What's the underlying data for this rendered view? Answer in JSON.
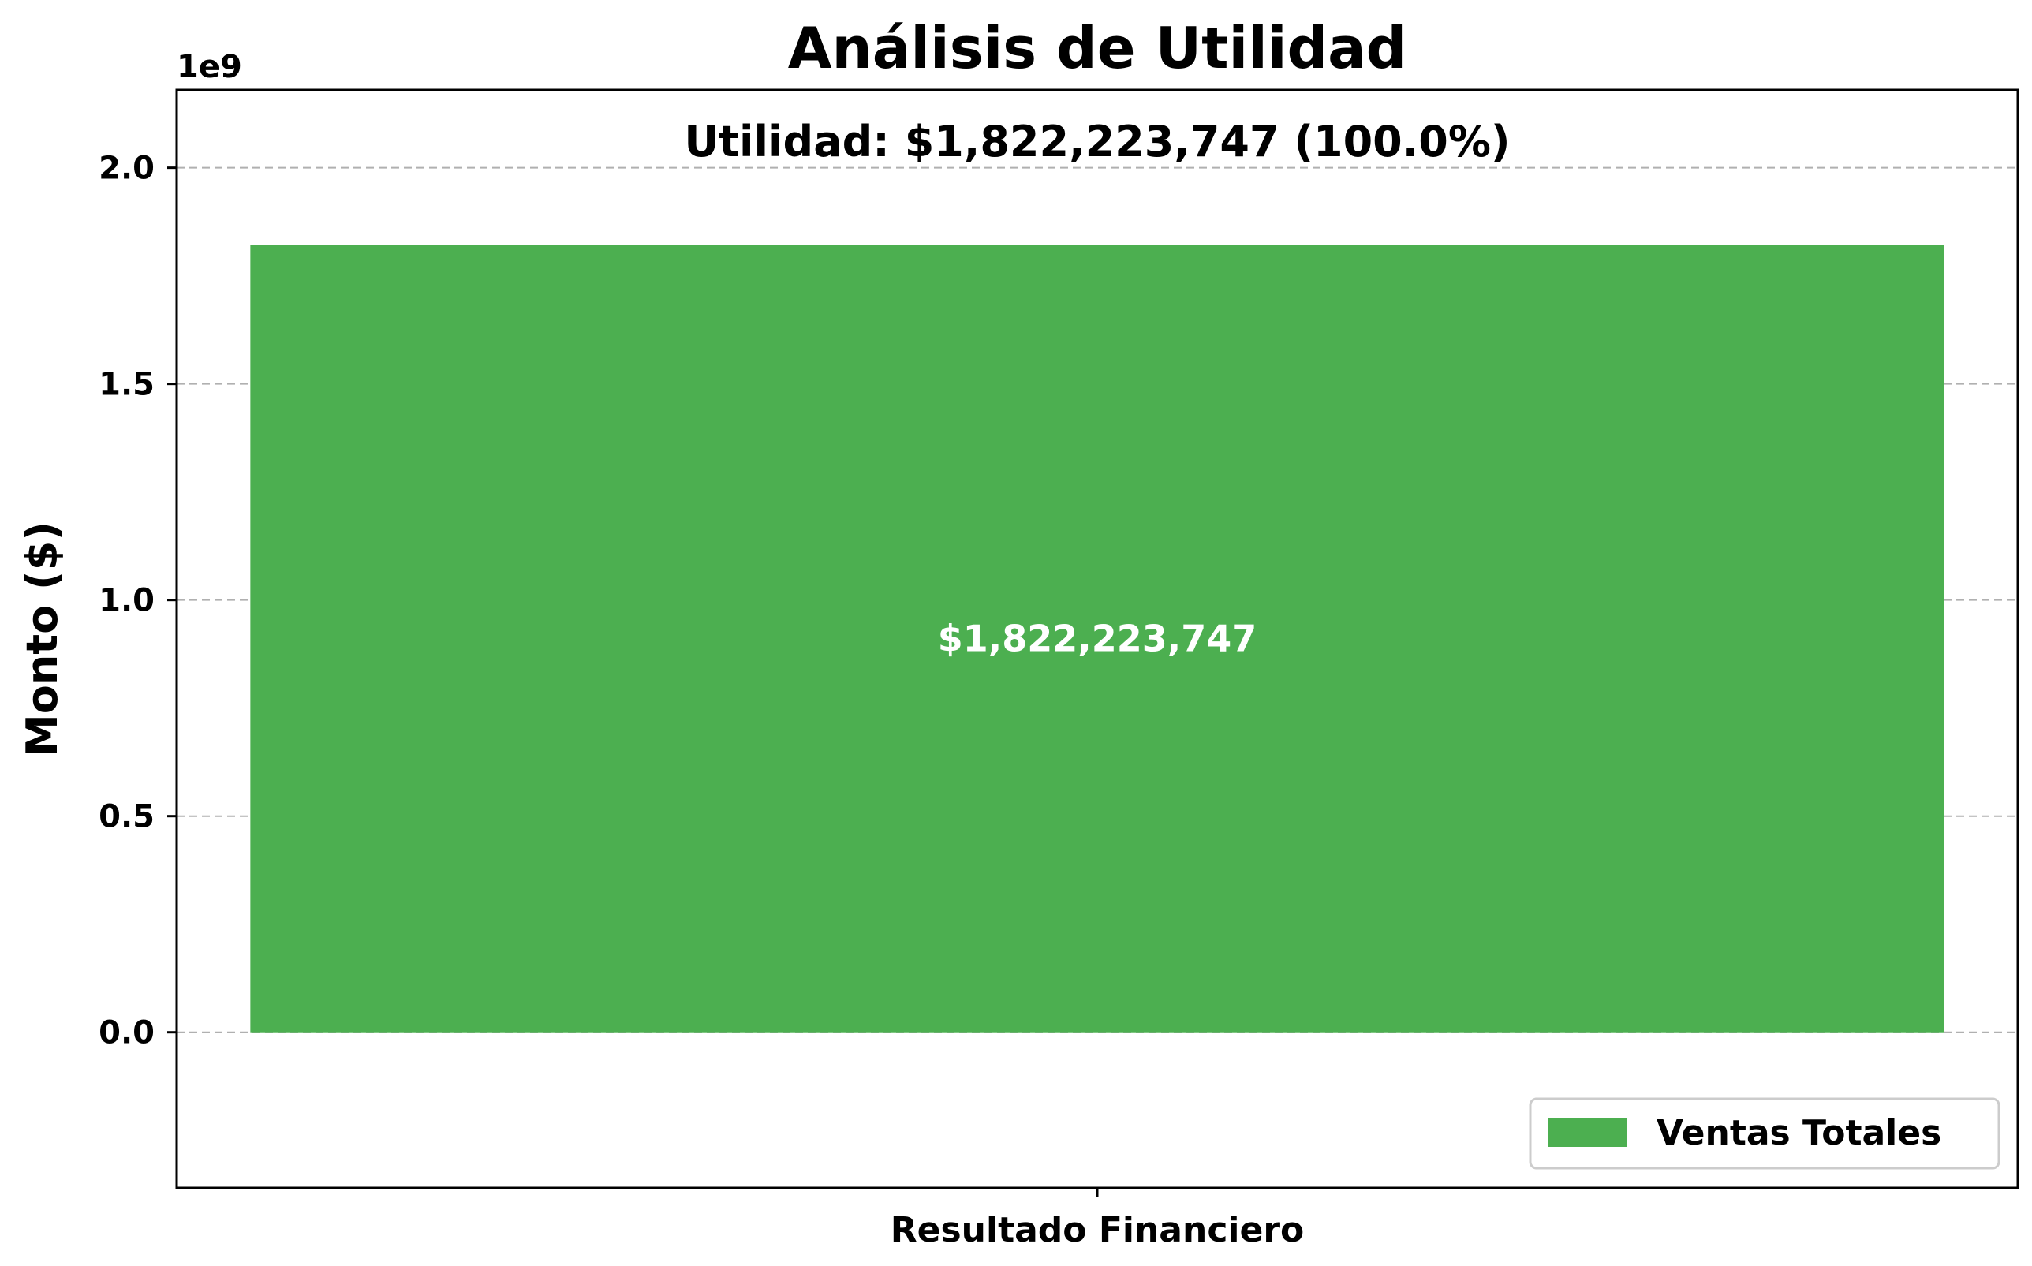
{
  "chart_data": {
    "type": "bar",
    "title": "Análisis de Utilidad",
    "annotation": "Utilidad: $1,822,223,747 (100.0%)",
    "xlabel": "",
    "ylabel": "Monto ($)",
    "y_offset_label": "1e9",
    "categories": [
      "Resultado Financiero"
    ],
    "series": [
      {
        "name": "Ventas Totales",
        "values": [
          1822223747
        ],
        "color": "#4caf50",
        "value_label": "$1,822,223,747"
      }
    ],
    "ylim": [
      -360000000.0,
      2180000000.0
    ],
    "yticks": [
      0,
      500000000,
      1000000000,
      1500000000,
      2000000000
    ],
    "ytick_labels": [
      "0.0",
      "0.5",
      "1.0",
      "1.5",
      "2.0"
    ],
    "grid": "y-dashed",
    "legend_position": "lower-right"
  }
}
